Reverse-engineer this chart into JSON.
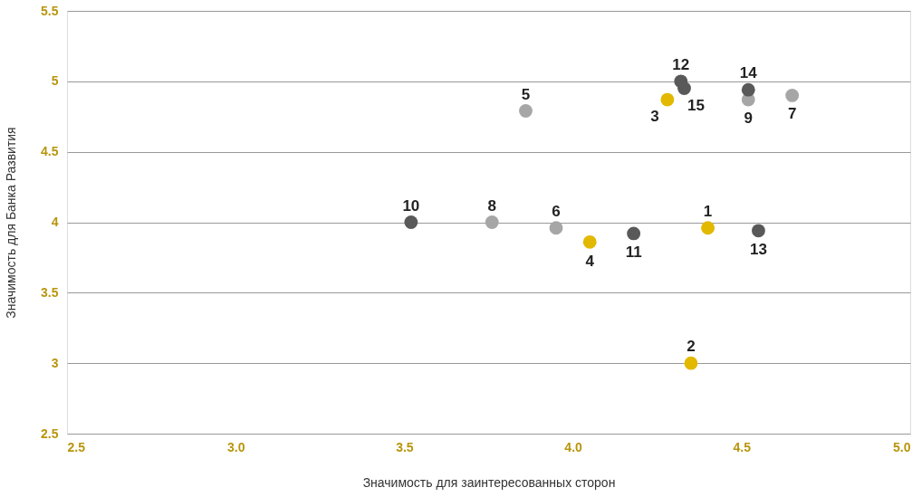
{
  "chart_data": {
    "type": "scatter",
    "xlabel": "Значимость для заинтересованных сторон",
    "ylabel": "Значимость для Банка Развития",
    "series": [
      {
        "color": "#e2b800",
        "x": [
          4.4,
          4.35,
          4.28,
          4.05
        ],
        "values": [
          3.96,
          3.0,
          4.87,
          3.86
        ]
      },
      {
        "color": "#a6a6a6",
        "x": [
          3.86,
          3.95,
          4.65,
          3.76,
          4.52
        ],
        "values": [
          4.79,
          3.96,
          4.9,
          4.0,
          4.87
        ]
      },
      {
        "color": "#595959",
        "x": [
          3.52,
          4.18,
          4.32,
          4.55,
          4.52,
          4.33
        ],
        "values": [
          4.0,
          3.92,
          5.0,
          3.94,
          4.94,
          4.95
        ]
      }
    ],
    "annotations": [
      {
        "text": "1",
        "x": 4.4,
        "y": 3.96
      },
      {
        "text": "2",
        "x": 4.35,
        "y": 3.0
      },
      {
        "text": "3",
        "x": 4.28,
        "y": 4.87
      },
      {
        "text": "4",
        "x": 4.05,
        "y": 3.86
      },
      {
        "text": "5",
        "x": 3.86,
        "y": 4.79
      },
      {
        "text": "6",
        "x": 3.95,
        "y": 3.96
      },
      {
        "text": "7",
        "x": 4.65,
        "y": 4.9
      },
      {
        "text": "8",
        "x": 3.76,
        "y": 4.0
      },
      {
        "text": "9",
        "x": 4.52,
        "y": 4.87
      },
      {
        "text": "10",
        "x": 3.52,
        "y": 4.0
      },
      {
        "text": "11",
        "x": 4.18,
        "y": 3.92
      },
      {
        "text": "12",
        "x": 4.32,
        "y": 5.0
      },
      {
        "text": "13",
        "x": 4.55,
        "y": 3.94
      },
      {
        "text": "14",
        "x": 4.52,
        "y": 4.94
      },
      {
        "text": "15",
        "x": 4.33,
        "y": 4.95
      }
    ],
    "xlim": [
      2.5,
      5.0
    ],
    "xticks": [
      2.5,
      {
        "value": 3,
        "label": "3.0"
      },
      3.5,
      {
        "value": 4,
        "label": "4.0"
      },
      4.5,
      {
        "value": 5,
        "label": "5.0"
      }
    ],
    "ylim": [
      2.5,
      5.5
    ],
    "yticks": [
      2.5,
      3,
      3.5,
      4,
      4.5,
      5,
      5.5
    ],
    "grid": "y",
    "marker": "circle",
    "legend": false
  }
}
